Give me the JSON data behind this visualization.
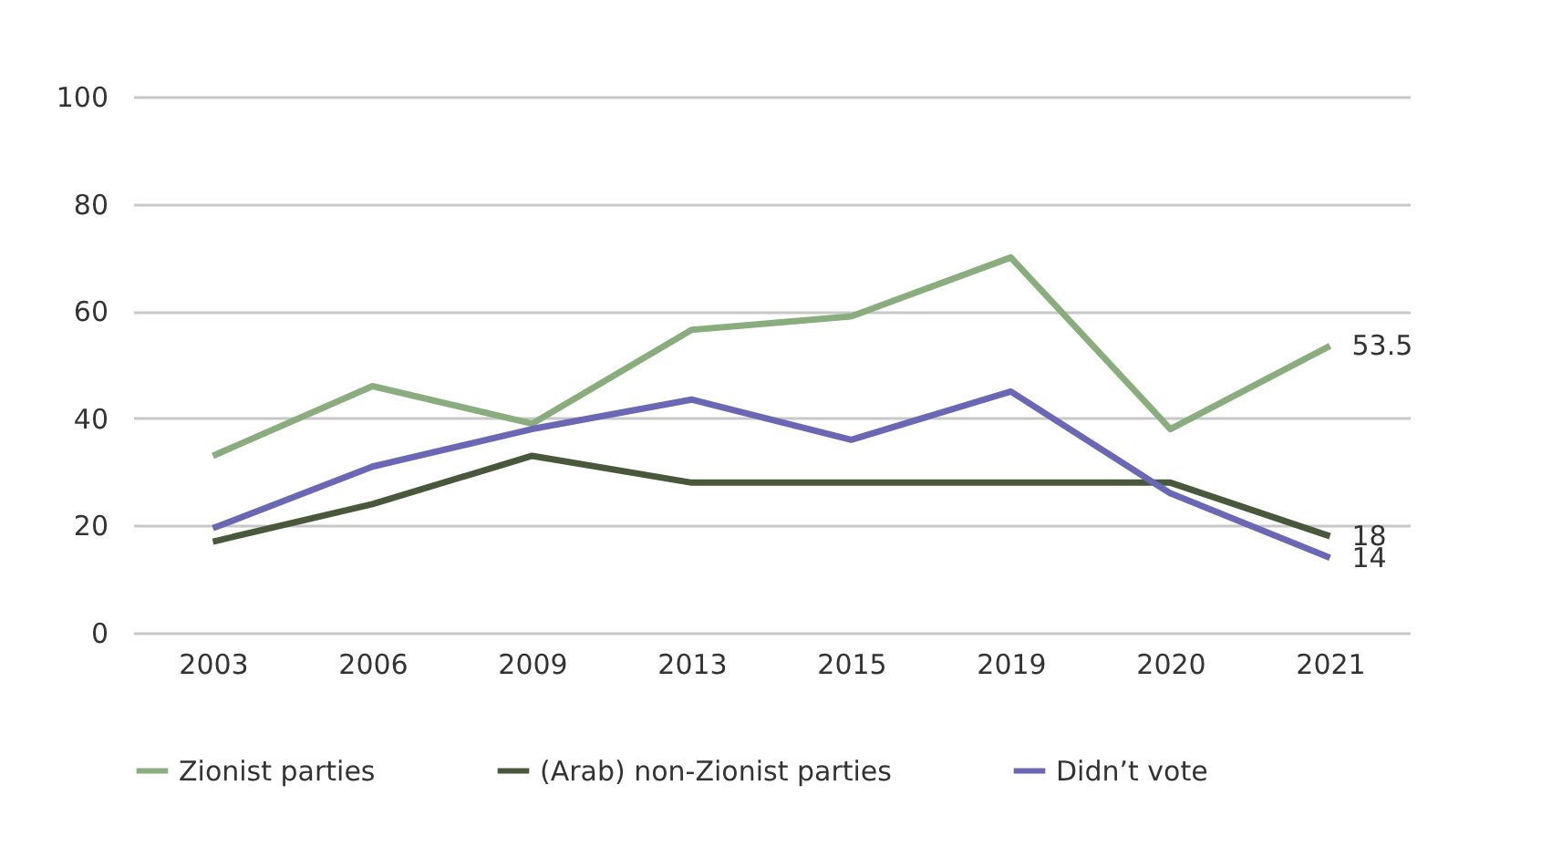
{
  "chart_data": {
    "type": "line",
    "categories": [
      "2003",
      "2006",
      "2009",
      "2013",
      "2015",
      "2019",
      "2020",
      "2021"
    ],
    "series": [
      {
        "name": "Zionist parties",
        "color": "#8aad7e",
        "values": [
          33,
          46,
          39,
          56.5,
          59,
          70,
          38,
          53.5
        ],
        "value_labels": [
          null,
          null,
          null,
          null,
          null,
          null,
          null,
          "53.5"
        ]
      },
      {
        "name": "(Arab) non-Zionist parties",
        "color": "#48583a",
        "values": [
          17,
          24,
          33,
          28,
          28,
          28,
          28,
          18
        ],
        "value_labels": [
          null,
          null,
          null,
          null,
          null,
          null,
          null,
          "18"
        ]
      },
      {
        "name": "Didn’t vote",
        "color": "#6a68b4",
        "values": [
          19.5,
          31,
          38,
          43.5,
          36,
          45,
          26,
          14
        ],
        "value_labels": [
          null,
          null,
          null,
          null,
          null,
          null,
          null,
          "14"
        ]
      }
    ],
    "ylim": [
      0,
      100
    ],
    "yticks": [
      0,
      20,
      40,
      60,
      80,
      100
    ],
    "grid": "y",
    "legend": "bottom",
    "marker": "none",
    "line_style": "solid"
  }
}
